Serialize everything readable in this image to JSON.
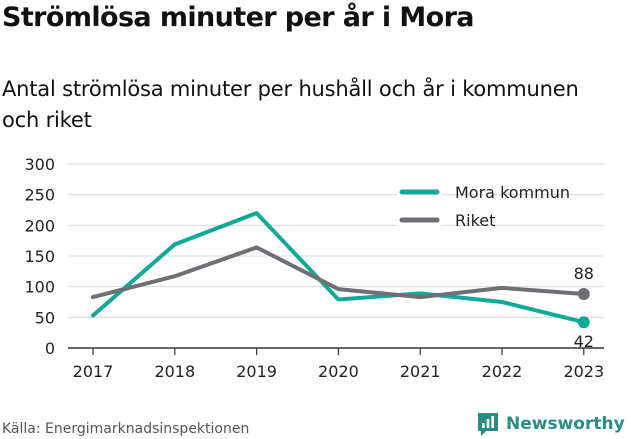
{
  "title": "Strömlösa minuter per år i Mora",
  "subtitle": "Antal strömlösa minuter per hushåll och år i kommunen och riket",
  "source": "Källa: Energimarknadsinspektionen",
  "brand": "Newsworthy",
  "icon_brand": "newsworthy-logo-icon",
  "chart_data": {
    "type": "line",
    "x": [
      "2017",
      "2018",
      "2019",
      "2020",
      "2021",
      "2022",
      "2023"
    ],
    "yticks": [
      0,
      50,
      100,
      150,
      200,
      250,
      300
    ],
    "ylim": [
      0,
      300
    ],
    "grid": true,
    "legend_position": "top-right",
    "series": [
      {
        "name": "Mora kommun",
        "color": "#12a99b",
        "values": [
          53,
          169,
          220,
          79,
          89,
          75,
          42
        ]
      },
      {
        "name": "Riket",
        "color": "#6f6e73",
        "values": [
          83,
          117,
          164,
          96,
          83,
          98,
          88
        ]
      }
    ],
    "end_labels": [
      "42",
      "88"
    ]
  }
}
